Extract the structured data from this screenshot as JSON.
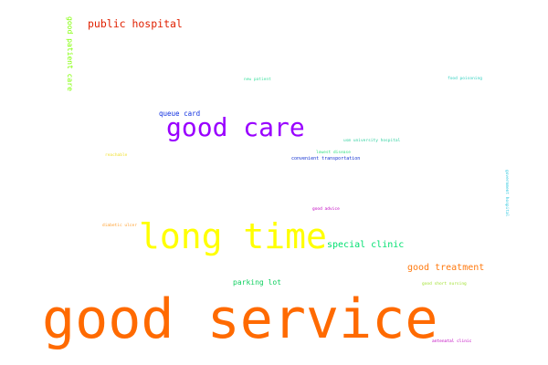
{
  "words": {
    "good_service": {
      "text": "good service",
      "color": "#ff6a00"
    },
    "long_time": {
      "text": "long time",
      "color": "#ffff00"
    },
    "good_care": {
      "text": "good care",
      "color": "#9900ff"
    },
    "public_hospital": {
      "text": "public hospital",
      "color": "#e02000"
    },
    "good_patient_care": {
      "text": "good patient care",
      "color": "#7fff00"
    },
    "queue_card": {
      "text": "queue card",
      "color": "#1030e0"
    },
    "special_clinic": {
      "text": "special clinic",
      "color": "#00e070"
    },
    "good_treatment": {
      "text": "good treatment",
      "color": "#ff7a10"
    },
    "parking_lot": {
      "text": "parking lot",
      "color": "#10d060"
    },
    "new_patient": {
      "text": "new patient",
      "color": "#40e0a0"
    },
    "food_poisoning": {
      "text": "food poisoning",
      "color": "#30d0c0"
    },
    "usm_hospital": {
      "text": "usm university hospital",
      "color": "#30d0a0"
    },
    "lowest_disease": {
      "text": "lowest disease",
      "color": "#30e080"
    },
    "convenient_transportation": {
      "text": "convenient transportation",
      "color": "#1030d0"
    },
    "reachable": {
      "text": "reachable",
      "color": "#f0e030"
    },
    "good_advice": {
      "text": "good advice",
      "color": "#c000c0"
    },
    "diabetic_ulcer": {
      "text": "diabetic ulcer",
      "color": "#ffa030"
    },
    "good_short_nursing": {
      "text": "good short nursing",
      "color": "#a0e030"
    },
    "antenatal_clinic": {
      "text": "antenatal clinic",
      "color": "#c000c0"
    },
    "government_hospital": {
      "text": "government hospital",
      "color": "#30c8e0"
    }
  }
}
